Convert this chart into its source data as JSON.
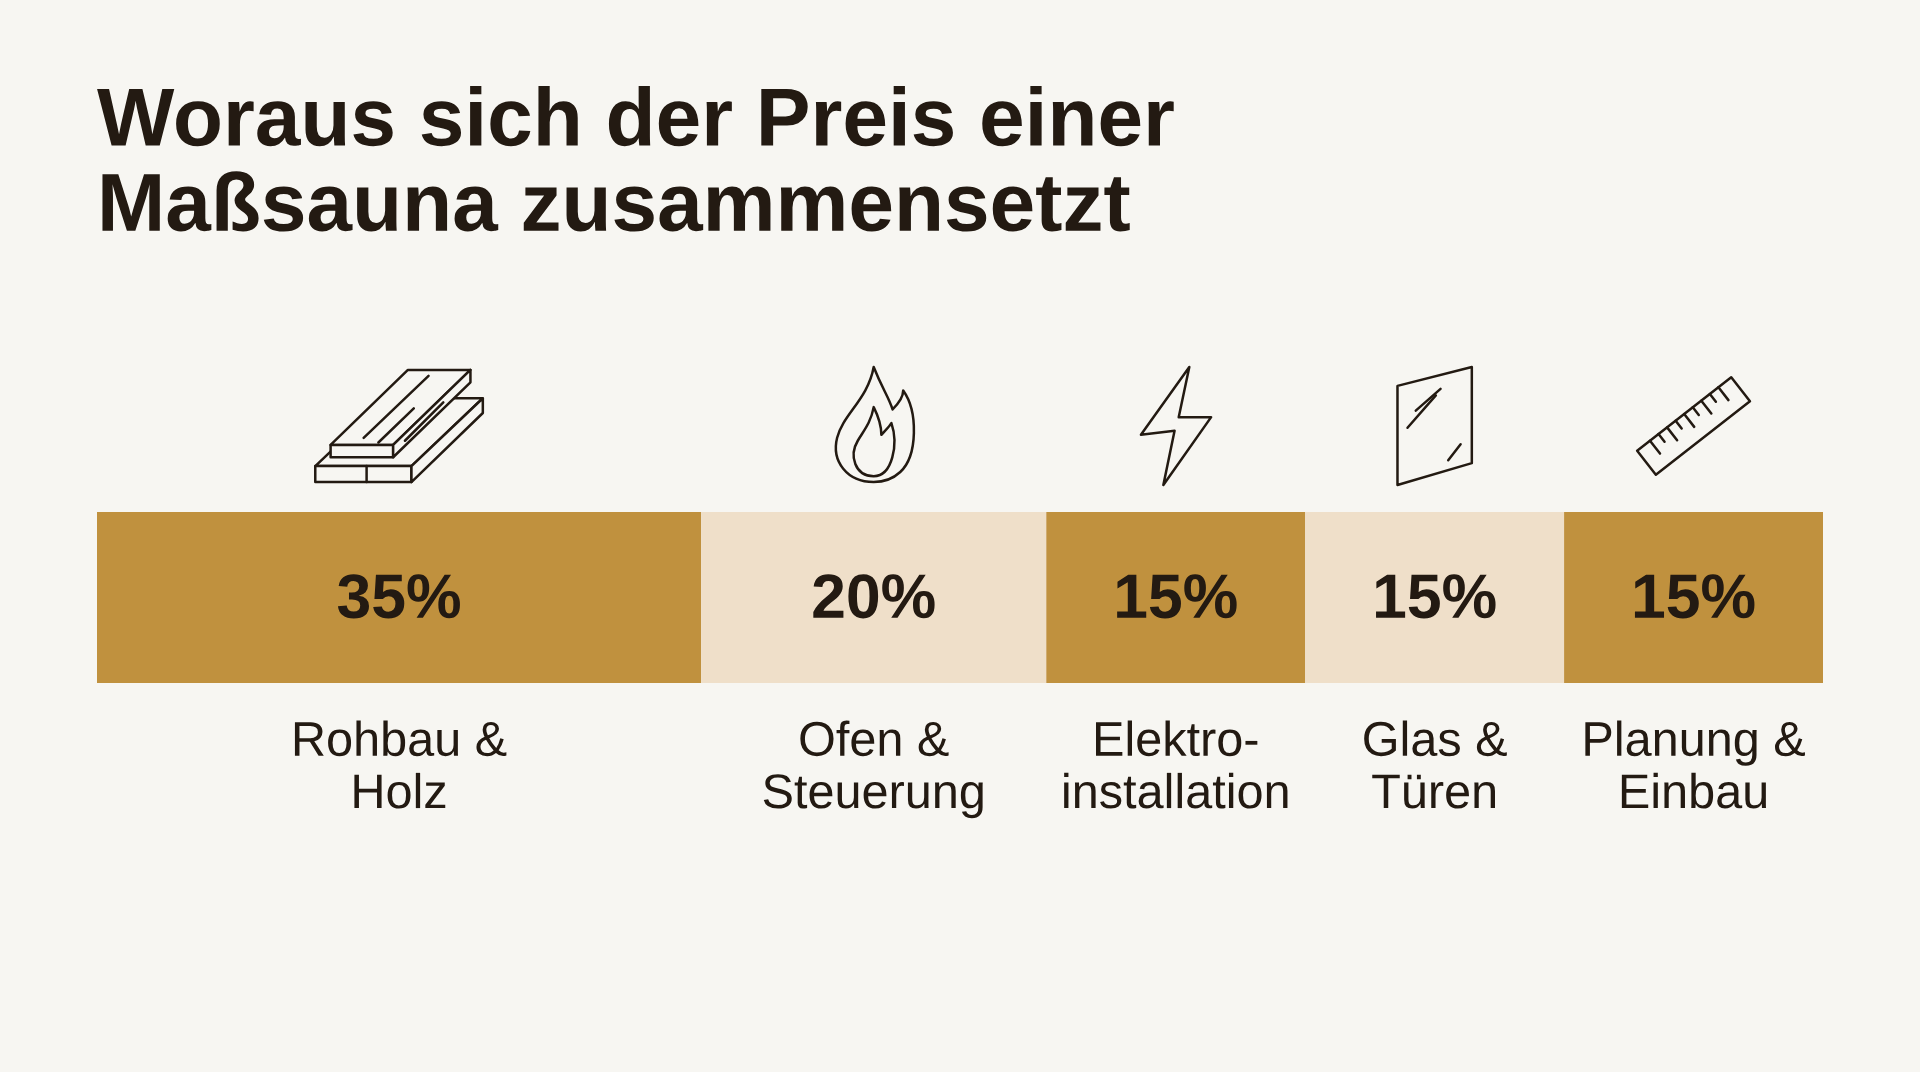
{
  "chart_data": {
    "type": "bar",
    "title": "Woraus sich der Preis einer\nMaßsauna zusammensetzt",
    "orientation": "horizontal",
    "stacked": true,
    "categories": [
      null
    ],
    "xlim": [
      0,
      100
    ],
    "tick_labels": false,
    "series": [
      {
        "name": "Rohbau &\nHolz",
        "color": "#c0913e",
        "values": [
          35
        ],
        "value_labels": [
          "35%"
        ]
      },
      {
        "name": "Ofen &\nSteuerung",
        "color": "#efdfc9",
        "values": [
          20
        ],
        "value_labels": [
          "20%"
        ]
      },
      {
        "name": "Elektro-\ninstallation",
        "color": "#c0913e",
        "values": [
          15
        ],
        "value_labels": [
          "15%"
        ]
      },
      {
        "name": "Glas &\nTüren",
        "color": "#efdfc9",
        "values": [
          15
        ],
        "value_labels": [
          "15%"
        ]
      },
      {
        "name": "Planung &\nEinbau",
        "color": "#c0913e",
        "values": [
          15
        ],
        "value_labels": [
          "15%"
        ]
      }
    ]
  }
}
